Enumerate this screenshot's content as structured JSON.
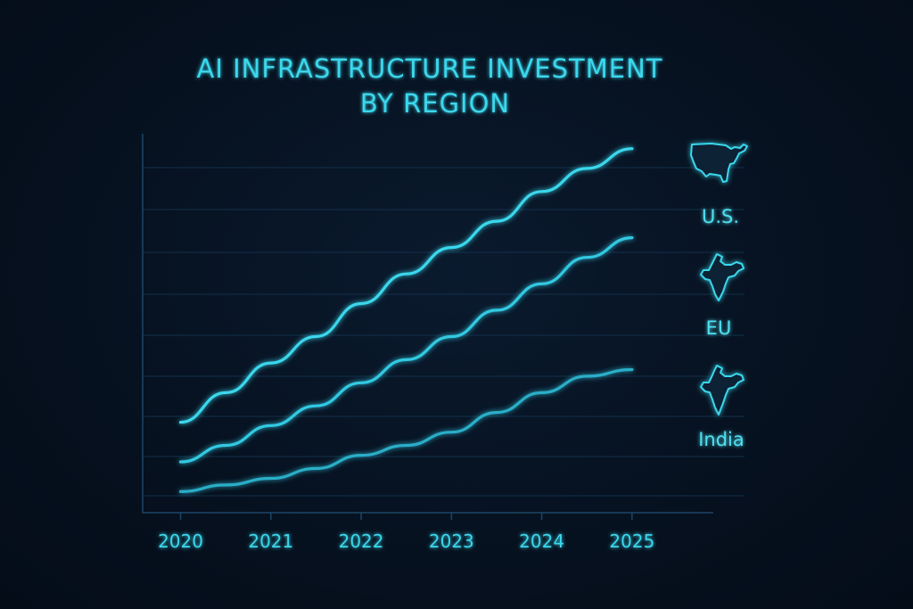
{
  "chart_data": {
    "type": "line",
    "title": [
      "AI INFRASTRUCTURE INVESTMENT",
      "BY REGION"
    ],
    "xlabel": "",
    "ylabel": "",
    "x": [
      2020,
      2021,
      2022,
      2023,
      2024,
      2025
    ],
    "x_tick_labels": [
      "2020",
      "2021",
      "2022",
      "2023",
      "2024",
      "2025"
    ],
    "ylim": [
      0,
      100
    ],
    "grid": "horizontal",
    "series": [
      {
        "name": "U.S.",
        "icon": "usa-map-icon",
        "color": "#3ad7ec",
        "x": [
          2020,
          2020.5,
          2021,
          2021.5,
          2022,
          2022.5,
          2023,
          2023.5,
          2024,
          2024.5,
          2025
        ],
        "values": [
          22,
          31,
          40,
          48,
          58,
          67,
          75,
          83,
          92,
          99,
          105
        ]
      },
      {
        "name": "EU",
        "icon": "india-map-icon",
        "color": "#33c9e2",
        "x": [
          2020,
          2020.5,
          2021,
          2021.5,
          2022,
          2022.5,
          2023,
          2023.5,
          2024,
          2024.5,
          2025
        ],
        "values": [
          10,
          15,
          21,
          27,
          34,
          41,
          48,
          56,
          64,
          72,
          78
        ]
      },
      {
        "name": "India",
        "icon": "india-map-icon",
        "color": "#2aaec8",
        "x": [
          2020,
          2020.5,
          2021,
          2021.5,
          2022,
          2022.5,
          2023,
          2023.5,
          2024,
          2024.5,
          2025
        ],
        "values": [
          1,
          3,
          5,
          8,
          12,
          15,
          19,
          25,
          31,
          36,
          38
        ]
      }
    ]
  }
}
